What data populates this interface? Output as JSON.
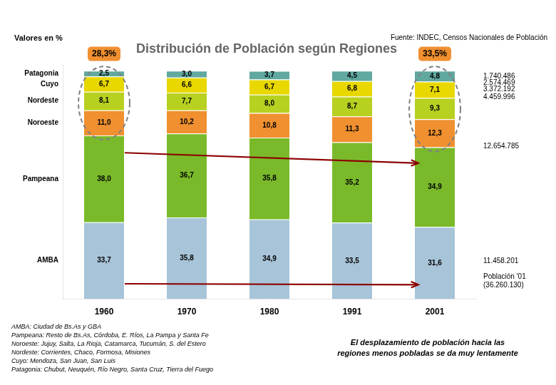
{
  "chart_data": {
    "type": "bar",
    "title": "Distribución de Población según Regiones",
    "subtitle": "Valores en %",
    "source": "Fuente: INDEC, Censos Nacionales de Población",
    "categories": [
      "1960",
      "1970",
      "1980",
      "1991",
      "2001"
    ],
    "series": [
      {
        "name": "AMBA",
        "color": "#a8c4d8",
        "values": [
          33.7,
          35.8,
          34.9,
          33.5,
          31.6
        ],
        "value_labels": [
          "33,7",
          "35,8",
          "34,9",
          "33,5",
          "31,6"
        ]
      },
      {
        "name": "Pampeana",
        "color": "#7aba2a",
        "values": [
          38.0,
          36.7,
          35.8,
          35.2,
          34.9
        ],
        "value_labels": [
          "38,0",
          "36,7",
          "35,8",
          "35,2",
          "34,9"
        ]
      },
      {
        "name": "Noroeste",
        "color": "#f09030",
        "values": [
          11.0,
          10.2,
          10.8,
          11.3,
          12.3
        ],
        "value_labels": [
          "11,0",
          "10,2",
          "10,8",
          "11,3",
          "12,3"
        ]
      },
      {
        "name": "Nordeste",
        "color": "#b8d020",
        "values": [
          8.1,
          7.7,
          8.0,
          8.7,
          9.3
        ],
        "value_labels": [
          "8,1",
          "7,7",
          "8,0",
          "8,7",
          "9,3"
        ]
      },
      {
        "name": "Cuyo",
        "color": "#e8d800",
        "values": [
          6.7,
          6.6,
          6.7,
          6.8,
          7.1
        ],
        "value_labels": [
          "6,7",
          "6,6",
          "6,7",
          "6,8",
          "7,1"
        ]
      },
      {
        "name": "Patagonia",
        "color": "#60a8a0",
        "values": [
          2.5,
          3.0,
          3.7,
          4.5,
          4.8
        ],
        "value_labels": [
          "2,5",
          "3,0",
          "3,7",
          "4,5",
          "4,8"
        ]
      }
    ],
    "stacked": true,
    "data_labels": true,
    "ylim": [
      0,
      103
    ],
    "tick_labels": "x",
    "grid": false,
    "highlights": [
      {
        "category": "1960",
        "label": "28,3%",
        "series": [
          "Noroeste",
          "Nordeste",
          "Cuyo",
          "Patagonia"
        ],
        "color": "#f09030"
      },
      {
        "category": "2001",
        "label": "33,5%",
        "series": [
          "Noroeste",
          "Nordeste",
          "Cuyo",
          "Patagonia"
        ],
        "color": "#f09030"
      }
    ],
    "arrows": [
      {
        "series": "Pampeana",
        "from": "1960",
        "to": "2001",
        "color": "#8b0000"
      },
      {
        "series": "AMBA",
        "from": "1960",
        "to": "2001",
        "color": "#8b0000"
      }
    ],
    "annotations": [
      {
        "text": "1.740.486",
        "y": 97.5
      },
      {
        "text": "2.574.469",
        "y": 94.8
      },
      {
        "text": "3.372.192",
        "y": 91.8
      },
      {
        "text": "4.459.996",
        "y": 88.5
      },
      {
        "text": "12.654.785",
        "y": 67.0
      },
      {
        "text": "11.458.201",
        "y": 16.5
      },
      {
        "text": "Población '01\n(36.260.130)",
        "y": 8.0
      }
    ],
    "footnotes": [
      "AMBA: Ciudad de Bs.As y GBA",
      "Pampeana: Resto de Bs.As, Córdoba, E. Ríos, La Pampa y Santa Fe",
      "Noroeste: Jujuy, Salta, La Rioja, Catamarca, Tucumán, S. del Estero",
      "Nordeste: Corrientes, Chaco, Formosa, Misiones",
      "Cuyo: Mendoza, San Juan, San Luis",
      "Patagonia: Chubut, Neuquén, Río Negro, Santa Cruz, Tierra del Fuego"
    ],
    "note": "El desplazamiento de población hacia las\nregiones menos pobladas se da muy lentamente"
  }
}
